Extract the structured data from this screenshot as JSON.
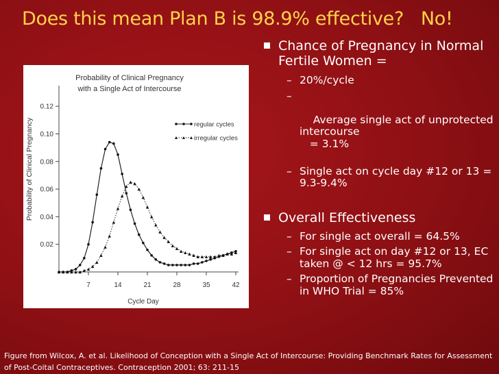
{
  "slide": {
    "title": "Does this mean Plan B is 98.9% effective?   No!",
    "caption": "Figure from Wilcox, A. et al. Likelihood of Conception with a Single Act of Intercourse: Providing Benchmark Rates for Assessment of Post-Coital Contraceptives. Contraception 2001; 63: 211-15"
  },
  "bullets": {
    "b1": "Chance of Pregnancy in Normal Fertile Women =",
    "b1_subs": [
      "20%/cycle",
      "Average single act of unprotected intercourse\n   = 3.1%",
      "Single act on cycle day #12 or 13 =  9.3-9.4%"
    ],
    "b2": "Overall Effectiveness",
    "b2_subs": [
      "For single act overall = 64.5%",
      "For single act on day #12 or 13, EC taken @ < 12 hrs = 95.7%",
      "Proportion of Pregnancies Prevented in WHO Trial = 85%"
    ]
  },
  "colors": {
    "background": "#8e1014",
    "title": "#ffd24a",
    "text": "#ffffff"
  },
  "chart_data": {
    "type": "line",
    "title": "Probability of Clinical Pregnancy\nwith a Single Act of Intercourse",
    "xlabel": "Cycle Day",
    "ylabel": "Probability of Clinical Pregnancy",
    "xlim": [
      0,
      42
    ],
    "ylim": [
      0,
      0.13
    ],
    "xticks": [
      "7",
      "14",
      "21",
      "28",
      "35",
      "42"
    ],
    "yticks": [
      "0.02",
      "0.04",
      "0.06",
      "0.08",
      "0.10",
      "0.12"
    ],
    "legend": "top-right",
    "grid": false,
    "series": [
      {
        "name": "regular cycles",
        "marker": "circle",
        "style": "solid",
        "x": [
          0,
          1,
          2,
          3,
          4,
          5,
          6,
          7,
          8,
          9,
          10,
          11,
          12,
          13,
          14,
          15,
          16,
          17,
          18,
          19,
          20,
          21,
          22,
          23,
          24,
          25,
          26,
          27,
          28,
          29,
          30,
          31,
          32,
          33,
          34,
          35,
          36,
          37,
          38,
          39,
          40,
          41,
          42
        ],
        "y": [
          0,
          0,
          0,
          0.001,
          0.002,
          0.005,
          0.01,
          0.02,
          0.036,
          0.056,
          0.075,
          0.089,
          0.094,
          0.093,
          0.085,
          0.071,
          0.057,
          0.045,
          0.035,
          0.027,
          0.021,
          0.016,
          0.012,
          0.009,
          0.007,
          0.006,
          0.005,
          0.005,
          0.005,
          0.005,
          0.005,
          0.005,
          0.006,
          0.006,
          0.007,
          0.008,
          0.009,
          0.01,
          0.011,
          0.012,
          0.013,
          0.014,
          0.015
        ]
      },
      {
        "name": "irregular cycles",
        "marker": "triangle",
        "style": "dotted",
        "x": [
          0,
          1,
          2,
          3,
          4,
          5,
          6,
          7,
          8,
          9,
          10,
          11,
          12,
          13,
          14,
          15,
          16,
          17,
          18,
          19,
          20,
          21,
          22,
          23,
          24,
          25,
          26,
          27,
          28,
          29,
          30,
          31,
          32,
          33,
          34,
          35,
          36,
          37,
          38,
          39,
          40,
          41,
          42
        ],
        "y": [
          0,
          0,
          0,
          0,
          0,
          0,
          0.001,
          0.002,
          0.004,
          0.007,
          0.012,
          0.018,
          0.026,
          0.036,
          0.046,
          0.055,
          0.062,
          0.065,
          0.064,
          0.06,
          0.054,
          0.047,
          0.04,
          0.034,
          0.029,
          0.025,
          0.022,
          0.019,
          0.017,
          0.015,
          0.014,
          0.013,
          0.012,
          0.011,
          0.011,
          0.011,
          0.011,
          0.011,
          0.012,
          0.012,
          0.013,
          0.013,
          0.014
        ]
      }
    ]
  }
}
